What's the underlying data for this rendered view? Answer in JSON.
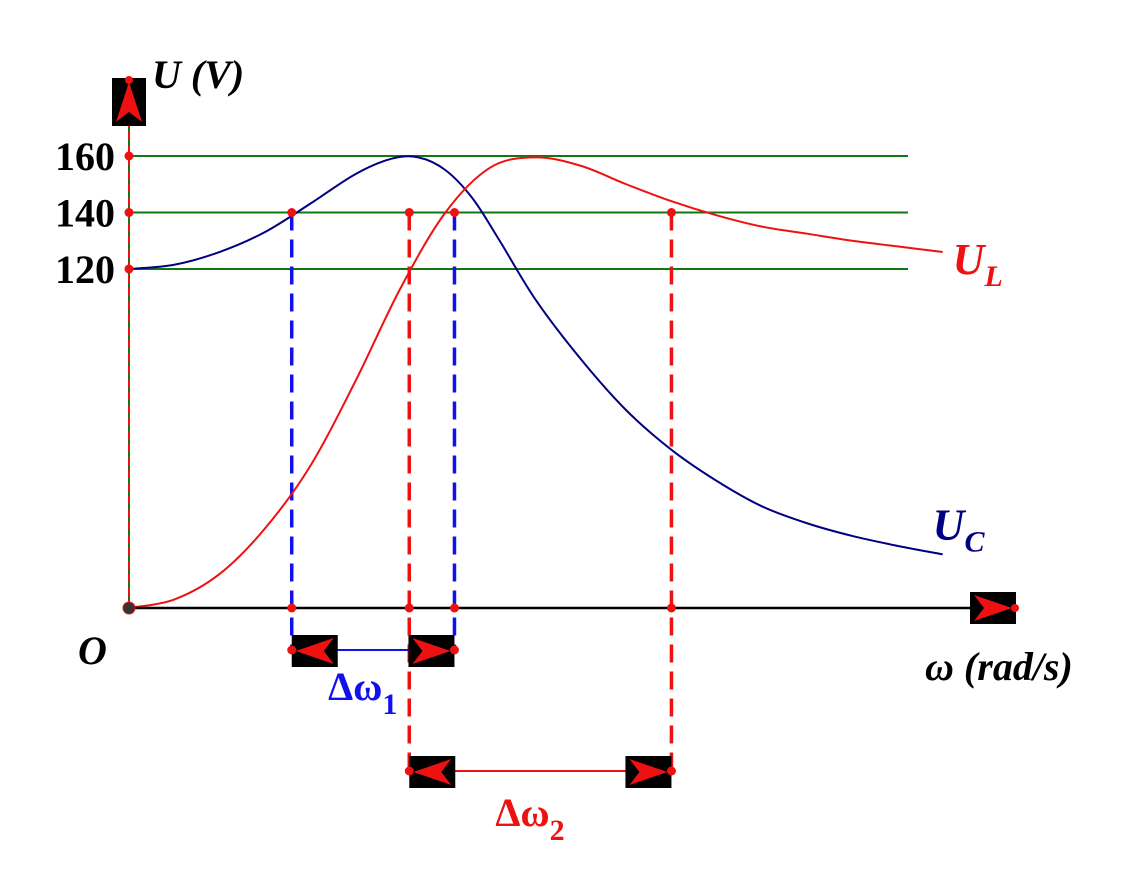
{
  "chart_data": {
    "type": "line",
    "x_axis_label": "ω (rad/s)",
    "y_axis_label": "U (V)",
    "origin_label": "O",
    "y_ticks": [
      "160",
      "140",
      "120"
    ],
    "y_tick_values": [
      160,
      140,
      120
    ],
    "ylim": [
      0,
      175
    ],
    "xlim": [
      0,
      9.8
    ],
    "grid_lines": [
      160,
      140,
      120
    ],
    "colors": {
      "grid": "#117711",
      "axis": "#000000",
      "uc": "#000080",
      "ul": "#ee1111",
      "delta1": "#1111ee",
      "delta2": "#ee1111",
      "marker": "#ee1111"
    },
    "series": [
      {
        "name": "U",
        "sub": "C",
        "key": "uc",
        "x": [
          0,
          0.5,
          1,
          1.5,
          2,
          2.5,
          2.9,
          3.2,
          3.5,
          3.8,
          4.1,
          4.5,
          5,
          5.5,
          6,
          6.5,
          7,
          7.5,
          8,
          8.5,
          9
        ],
        "y": [
          120,
          121.5,
          126,
          133,
          143,
          153.5,
          159,
          159.5,
          155,
          145,
          130,
          109,
          88,
          70,
          56,
          45,
          36,
          30,
          25.5,
          22,
          19
        ]
      },
      {
        "name": "U",
        "sub": "L",
        "key": "ul",
        "x": [
          0,
          0.5,
          1,
          1.5,
          2,
          2.5,
          3,
          3.5,
          4,
          4.5,
          5,
          5.5,
          6,
          6.5,
          7,
          7.5,
          8,
          8.5,
          9
        ],
        "y": [
          0,
          3,
          12,
          28,
          50,
          80,
          113,
          140,
          156,
          159.5,
          156.5,
          150,
          144,
          139,
          135,
          132.5,
          130,
          128,
          126
        ]
      }
    ],
    "intervals": [
      {
        "label": "Δω",
        "sub": "1",
        "key": "delta1",
        "from": 1.8,
        "to": 3.6,
        "level": 140
      },
      {
        "label": "Δω",
        "sub": "2",
        "key": "delta2",
        "from": 3.1,
        "to": 6.0,
        "level": 140
      }
    ]
  }
}
